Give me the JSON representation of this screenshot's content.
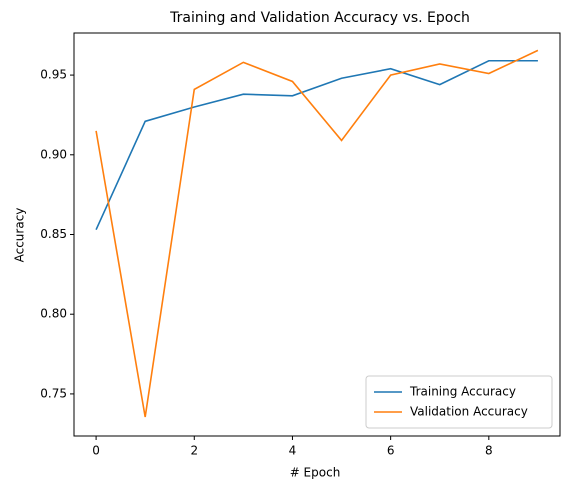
{
  "chart_data": {
    "type": "line",
    "title": "Training and Validation Accuracy vs. Epoch",
    "x_label": "# Epoch",
    "y_label": "Accuracy",
    "x": [
      0,
      1,
      2,
      3,
      4,
      5,
      6,
      7,
      8,
      9
    ],
    "series": [
      {
        "name": "Training Accuracy",
        "color": "#1f77b4",
        "values": [
          0.853,
          0.921,
          0.93,
          0.938,
          0.937,
          0.948,
          0.954,
          0.944,
          0.959,
          0.959
        ]
      },
      {
        "name": "Validation Accuracy",
        "color": "#ff7f0e",
        "values": [
          0.915,
          0.7355,
          0.941,
          0.958,
          0.946,
          0.909,
          0.95,
          0.957,
          0.951,
          0.9655
        ]
      }
    ],
    "xlim": [
      -0.45,
      9.45
    ],
    "xticks": [
      0,
      2,
      4,
      6,
      8
    ],
    "ylim": [
      0.7236,
      0.9764
    ],
    "yticks": [
      {
        "value": 0.75,
        "label": "0.75"
      },
      {
        "value": 0.8,
        "label": "0.80"
      },
      {
        "value": 0.85,
        "label": "0.85"
      },
      {
        "value": 0.9,
        "label": "0.90"
      },
      {
        "value": 0.95,
        "label": "0.95"
      }
    ],
    "legend": "lower right"
  }
}
